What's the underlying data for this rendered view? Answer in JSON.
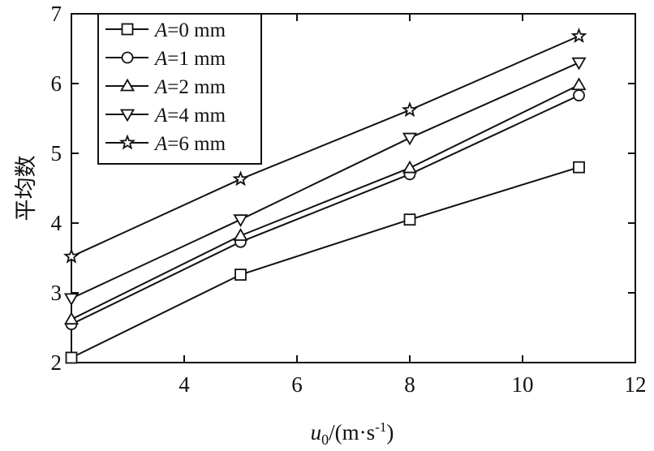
{
  "chart_data": {
    "type": "line",
    "title": "",
    "xlabel": {
      "var": "u",
      "sub": "0",
      "unit_pre": "/(m·s",
      "unit_sup": "-1",
      "unit_post": ")"
    },
    "ylabel": "平均数",
    "xlim": [
      2,
      12
    ],
    "ylim": [
      2,
      7
    ],
    "xticks": [
      "4",
      "6",
      "8",
      "10",
      "12"
    ],
    "yticks": [
      "2",
      "3",
      "4",
      "5",
      "6",
      "7"
    ],
    "x": [
      2,
      5,
      8,
      11
    ],
    "legend_position": "top-left",
    "grid": false,
    "series": [
      {
        "name_var": "A",
        "name_rest": "=0 mm",
        "marker": "square",
        "values": [
          2.07,
          3.26,
          4.05,
          4.8
        ]
      },
      {
        "name_var": "A",
        "name_rest": "=1 mm",
        "marker": "circle",
        "values": [
          2.55,
          3.73,
          4.7,
          5.83
        ]
      },
      {
        "name_var": "A",
        "name_rest": "=2 mm",
        "marker": "triangle-up",
        "values": [
          2.62,
          3.82,
          4.79,
          5.98
        ]
      },
      {
        "name_var": "A",
        "name_rest": "=4 mm",
        "marker": "triangle-down",
        "values": [
          2.92,
          4.05,
          5.22,
          6.3
        ]
      },
      {
        "name_var": "A",
        "name_rest": "=6 mm",
        "marker": "star",
        "values": [
          3.52,
          4.63,
          5.62,
          6.68
        ]
      }
    ]
  }
}
